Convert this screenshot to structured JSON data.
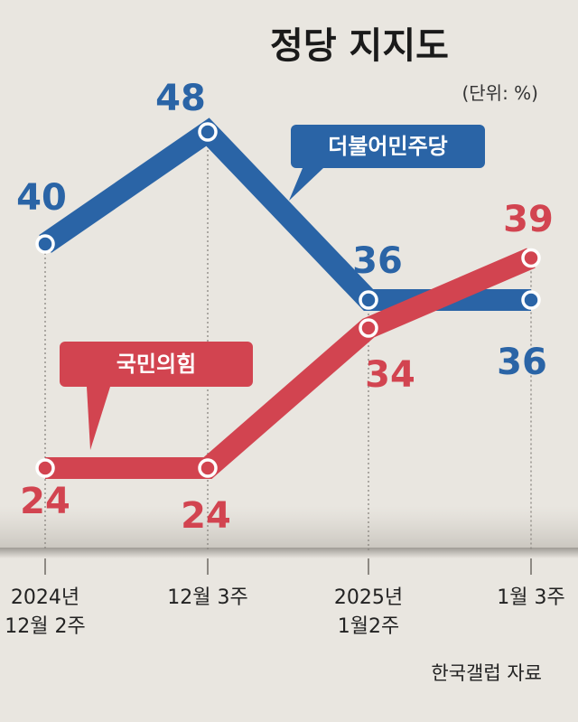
{
  "chart_data": {
    "type": "line",
    "title": "정당 지지도",
    "unit": "(단위: %)",
    "categories": [
      "2024년\n12월 2주",
      "12월 3주",
      "2025년\n1월2주",
      "1월 3주"
    ],
    "series": [
      {
        "name": "더불어민주당",
        "values": [
          40,
          48,
          36,
          36
        ],
        "color": "#2a64a6"
      },
      {
        "name": "국민의힘",
        "values": [
          24,
          24,
          34,
          39
        ],
        "color": "#d24450"
      }
    ],
    "source": "한국갤럽 자료"
  }
}
